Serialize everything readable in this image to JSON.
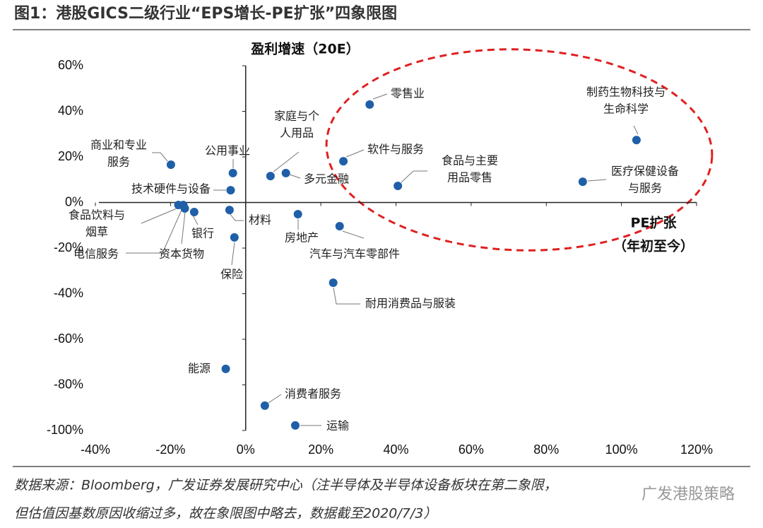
{
  "chart_data": {
    "type": "scatter",
    "title": "图1：港股GICS二级行业“EPS增长-PE扩张”四象限图",
    "ylabel": "盈利增速（20E）",
    "xlabel": [
      "PE扩张",
      "（年初至今）"
    ],
    "point_labels": [
      [
        "零售业"
      ],
      [
        "制药生物科技与",
        "生命科学"
      ],
      [
        "软件与服务"
      ],
      [
        "食品与主要",
        "用品零售"
      ],
      [
        "医疗保健设备",
        "与服务"
      ],
      [
        "家庭与个",
        "人用品"
      ],
      [
        "多元金融"
      ],
      [
        "公用事业"
      ],
      [
        "商业和专业",
        "服务"
      ],
      [
        "技术硬件与设备"
      ],
      [
        "食品饮料与",
        "烟草"
      ],
      [
        "电信服务"
      ],
      [
        "资本货物"
      ],
      [
        "银行"
      ],
      [
        "材料"
      ],
      [
        "保险"
      ],
      [
        "房地产"
      ],
      [
        "汽车与汽车零部件"
      ],
      [
        "耐用消费品与服装"
      ],
      [
        "能源"
      ],
      [
        "消费者服务"
      ],
      [
        "运输"
      ]
    ],
    "x": [
      33,
      104,
      26,
      40.5,
      89.7,
      6.6,
      10.7,
      -3.4,
      -19.9,
      -4,
      -17.9,
      -16.6,
      -16.2,
      -13.7,
      -4.3,
      -3,
      13.9,
      25,
      23.3,
      -5.3,
      5.1,
      13.2
    ],
    "values": [
      43,
      27.4,
      18.1,
      7.3,
      9.1,
      11.6,
      12.9,
      12.9,
      16.6,
      5.4,
      -1.1,
      -1.1,
      -2.6,
      -4.2,
      -3.3,
      -15.3,
      -5.1,
      -10.4,
      -35.2,
      -73,
      -89.1,
      -97.8
    ],
    "color": "#1f5fa8",
    "xlim": [
      -40,
      120
    ],
    "xticks": [
      {
        "value": -40,
        "label": "-40%"
      },
      {
        "value": -20,
        "label": "-20%"
      },
      {
        "value": 0,
        "label": "0%"
      },
      {
        "value": 20,
        "label": "20%"
      },
      {
        "value": 40,
        "label": "40%"
      },
      {
        "value": 60,
        "label": "60%"
      },
      {
        "value": 80,
        "label": "80%"
      },
      {
        "value": 100,
        "label": "100%"
      },
      {
        "value": 120,
        "label": "120%"
      }
    ],
    "ylim": [
      -100,
      60
    ],
    "yticks": [
      {
        "value": -100,
        "label": "-100%"
      },
      {
        "value": -80,
        "label": "-80%"
      },
      {
        "value": -60,
        "label": "-60%"
      },
      {
        "value": -40,
        "label": "-40%"
      },
      {
        "value": -20,
        "label": "-20%"
      },
      {
        "value": 0,
        "label": "0%"
      },
      {
        "value": 20,
        "label": "20%"
      },
      {
        "value": 40,
        "label": "40%"
      },
      {
        "value": 60,
        "label": "60%"
      }
    ],
    "source": [
      "数据来源：Bloomberg，广发证券发展研究中心（注半导体及半导体设备板块在第二象限，",
      "但估值因基数原因收缩过多，故在象限图中略去，数据截至2020/7/3）"
    ],
    "watermark": "广发港股策略"
  }
}
